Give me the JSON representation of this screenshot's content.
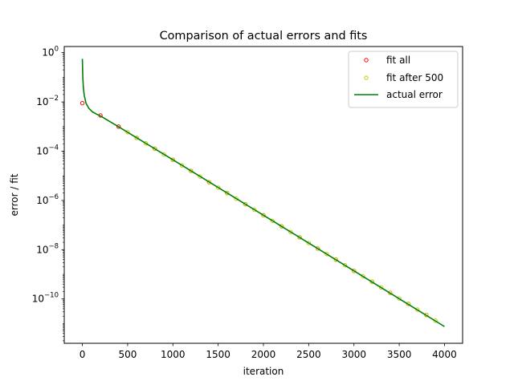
{
  "chart_data": {
    "type": "scatter",
    "title": "Comparison of actual errors and fits",
    "xlabel": "iteration",
    "ylabel": "error / fit",
    "xlim": [
      -200,
      4200
    ],
    "ylim_log10": [
      -11.8,
      0.25
    ],
    "yscale": "log",
    "x_ticks": [
      0,
      500,
      1000,
      1500,
      2000,
      2500,
      3000,
      3500,
      4000
    ],
    "x_tick_labels": [
      "0",
      "500",
      "1000",
      "1500",
      "2000",
      "2500",
      "3000",
      "3500",
      "4000"
    ],
    "y_ticks_exp": [
      0,
      -2,
      -4,
      -6,
      -8,
      -10
    ],
    "y_tick_labels": [
      {
        "base": "10",
        "exp": "0"
      },
      {
        "base": "10",
        "exp": "−2"
      },
      {
        "base": "10",
        "exp": "−4"
      },
      {
        "base": "10",
        "exp": "−6"
      },
      {
        "base": "10",
        "exp": "−8"
      },
      {
        "base": "10",
        "exp": "−10"
      }
    ],
    "grid": false,
    "legend_position": "top-right",
    "series": [
      {
        "name": "fit all",
        "kind": "markers",
        "color": "#ff0000",
        "x": [
          0,
          200,
          400,
          600,
          800,
          1000,
          1200,
          1400,
          1600,
          1800,
          2000,
          2200,
          2400,
          2600,
          2800,
          3000,
          3200,
          3400,
          3600,
          3800
        ],
        "log10_y": [
          -2.05,
          -2.55,
          -3.0,
          -3.46,
          -3.9,
          -4.35,
          -4.8,
          -5.26,
          -5.7,
          -6.15,
          -6.6,
          -7.05,
          -7.5,
          -7.95,
          -8.4,
          -8.86,
          -9.3,
          -9.75,
          -10.2,
          -10.65
        ]
      },
      {
        "name": "fit after 500",
        "kind": "markers",
        "color": "#c8c800",
        "x": [
          500,
          600,
          700,
          800,
          900,
          1000,
          1100,
          1200,
          1300,
          1400,
          1500,
          1600,
          1700,
          1800,
          1900,
          2000,
          2100,
          2200,
          2300,
          2400,
          2500,
          2600,
          2700,
          2800,
          2900,
          3000,
          3100,
          3200,
          3300,
          3400,
          3500,
          3600,
          3700,
          3800,
          3900
        ],
        "log10_y": [
          -3.23,
          -3.46,
          -3.68,
          -3.9,
          -4.13,
          -4.35,
          -4.58,
          -4.8,
          -5.03,
          -5.26,
          -5.48,
          -5.7,
          -5.93,
          -6.15,
          -6.38,
          -6.6,
          -6.83,
          -7.05,
          -7.28,
          -7.5,
          -7.73,
          -7.95,
          -8.18,
          -8.4,
          -8.63,
          -8.86,
          -9.08,
          -9.3,
          -9.53,
          -9.75,
          -9.98,
          -10.2,
          -10.43,
          -10.65,
          -10.88
        ]
      },
      {
        "name": "actual error",
        "kind": "line",
        "color": "#008000",
        "x": [
          0,
          5,
          10,
          20,
          40,
          70,
          110,
          160,
          200,
          400,
          1000,
          2000,
          3000,
          4000
        ],
        "log10_y": [
          -0.25,
          -1.0,
          -1.35,
          -1.72,
          -2.05,
          -2.25,
          -2.4,
          -2.5,
          -2.57,
          -3.01,
          -4.35,
          -6.6,
          -8.86,
          -11.12
        ]
      }
    ]
  }
}
